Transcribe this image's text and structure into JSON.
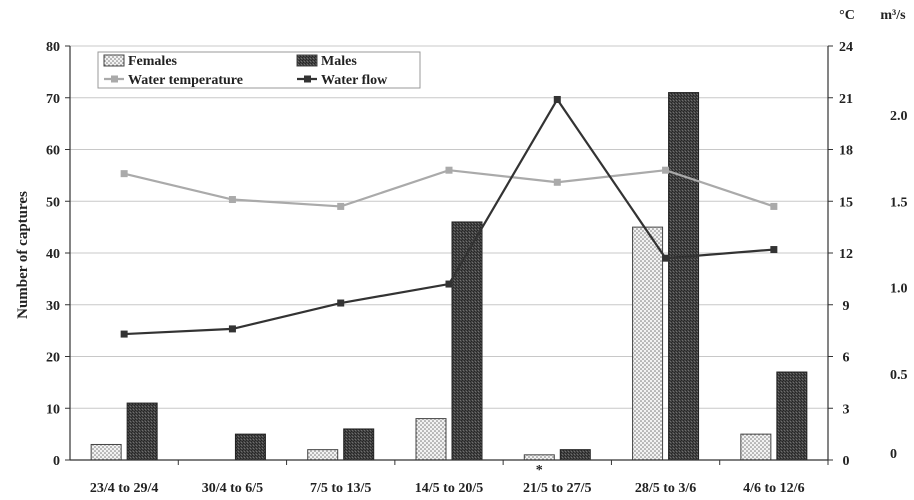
{
  "chart_data": {
    "type": "bar",
    "categories": [
      "23/4 to 29/4",
      "30/4 to 6/5",
      "7/5 to 13/5",
      "14/5 to 20/5",
      "21/5 to 27/5",
      "28/5 to 3/6",
      "4/6 to 12/6"
    ],
    "category_annotations": [
      "",
      "",
      "",
      "",
      "*",
      "",
      ""
    ],
    "ylabel": "Number of captures",
    "ylim": [
      0,
      80
    ],
    "yticks": [
      "0",
      "10",
      "20",
      "30",
      "40",
      "50",
      "60",
      "70",
      "80"
    ],
    "y2_unit": "°C",
    "y2lim": [
      0,
      24
    ],
    "y2ticks": [
      "0",
      "3",
      "6",
      "9",
      "12",
      "15",
      "18",
      "21",
      "24"
    ],
    "y3_unit": "m³/s",
    "y3ticks": [
      "0",
      "0.5",
      "1.0",
      "1.5",
      "2.0"
    ],
    "y3_tick_values": [
      0,
      0.5,
      1.0,
      1.5,
      2.0
    ],
    "y3lim": [
      0,
      2.4
    ],
    "series": [
      {
        "name": "Females",
        "kind": "bar",
        "axis": "left",
        "values": [
          3,
          0,
          2,
          8,
          1,
          45,
          5
        ],
        "pattern": "dotted"
      },
      {
        "name": "Males",
        "kind": "bar",
        "axis": "left",
        "values": [
          11,
          5,
          6,
          46,
          2,
          71,
          17
        ],
        "pattern": "dark-hatched"
      },
      {
        "name": "Water temperature",
        "kind": "line",
        "axis": "temperature",
        "values": [
          16.6,
          15.1,
          14.7,
          16.8,
          16.1,
          16.8,
          14.7
        ],
        "color": "#aaaaaa"
      },
      {
        "name": "Water flow",
        "kind": "line",
        "axis": "flow",
        "values": [
          0.73,
          0.76,
          0.91,
          1.02,
          2.09,
          1.17,
          1.22
        ],
        "color": "#333333"
      }
    ],
    "grid": true,
    "legend_position": "top-left"
  }
}
